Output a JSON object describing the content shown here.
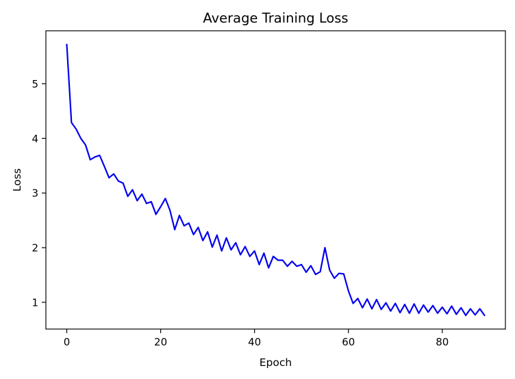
{
  "chart_data": {
    "type": "line",
    "title": "Average Training Loss",
    "xlabel": "Epoch",
    "ylabel": "Loss",
    "xlim": [
      -4.45,
      93.45
    ],
    "ylim": [
      0.51,
      5.97
    ],
    "grid": false,
    "legend": "none",
    "xticks": [
      0,
      20,
      40,
      60,
      80
    ],
    "yticks": [
      1,
      2,
      3,
      4,
      5
    ],
    "series": [
      {
        "color": "#0000ee",
        "x": [
          0,
          1,
          2,
          3,
          4,
          5,
          6,
          7,
          8,
          9,
          10,
          11,
          12,
          13,
          14,
          15,
          16,
          17,
          18,
          19,
          20,
          21,
          22,
          23,
          24,
          25,
          26,
          27,
          28,
          29,
          30,
          31,
          32,
          33,
          34,
          35,
          36,
          37,
          38,
          39,
          40,
          41,
          42,
          43,
          44,
          45,
          46,
          47,
          48,
          49,
          50,
          51,
          52,
          53,
          54,
          55,
          56,
          57,
          58,
          59,
          60,
          61,
          62,
          63,
          64,
          65,
          66,
          67,
          68,
          69,
          70,
          71,
          72,
          73,
          74,
          75,
          76,
          77,
          78,
          79,
          80,
          81,
          82,
          83,
          84,
          85,
          86,
          87,
          88,
          89
        ],
        "values": [
          5.72,
          4.29,
          4.17,
          4.0,
          3.88,
          3.61,
          3.66,
          3.69,
          3.49,
          3.28,
          3.35,
          3.22,
          3.18,
          2.94,
          3.06,
          2.86,
          2.98,
          2.81,
          2.84,
          2.61,
          2.75,
          2.9,
          2.68,
          2.33,
          2.59,
          2.4,
          2.45,
          2.24,
          2.37,
          2.13,
          2.29,
          2.01,
          2.23,
          1.94,
          2.18,
          1.96,
          2.09,
          1.87,
          2.02,
          1.84,
          1.94,
          1.69,
          1.9,
          1.63,
          1.84,
          1.77,
          1.77,
          1.66,
          1.75,
          1.66,
          1.69,
          1.55,
          1.67,
          1.51,
          1.56,
          2.0,
          1.59,
          1.44,
          1.53,
          1.52,
          1.21,
          0.98,
          1.07,
          0.9,
          1.06,
          0.88,
          1.05,
          0.87,
          0.99,
          0.84,
          0.98,
          0.81,
          0.96,
          0.8,
          0.97,
          0.8,
          0.95,
          0.82,
          0.94,
          0.8,
          0.91,
          0.79,
          0.93,
          0.78,
          0.9,
          0.76,
          0.88,
          0.77,
          0.88,
          0.76
        ]
      }
    ]
  }
}
